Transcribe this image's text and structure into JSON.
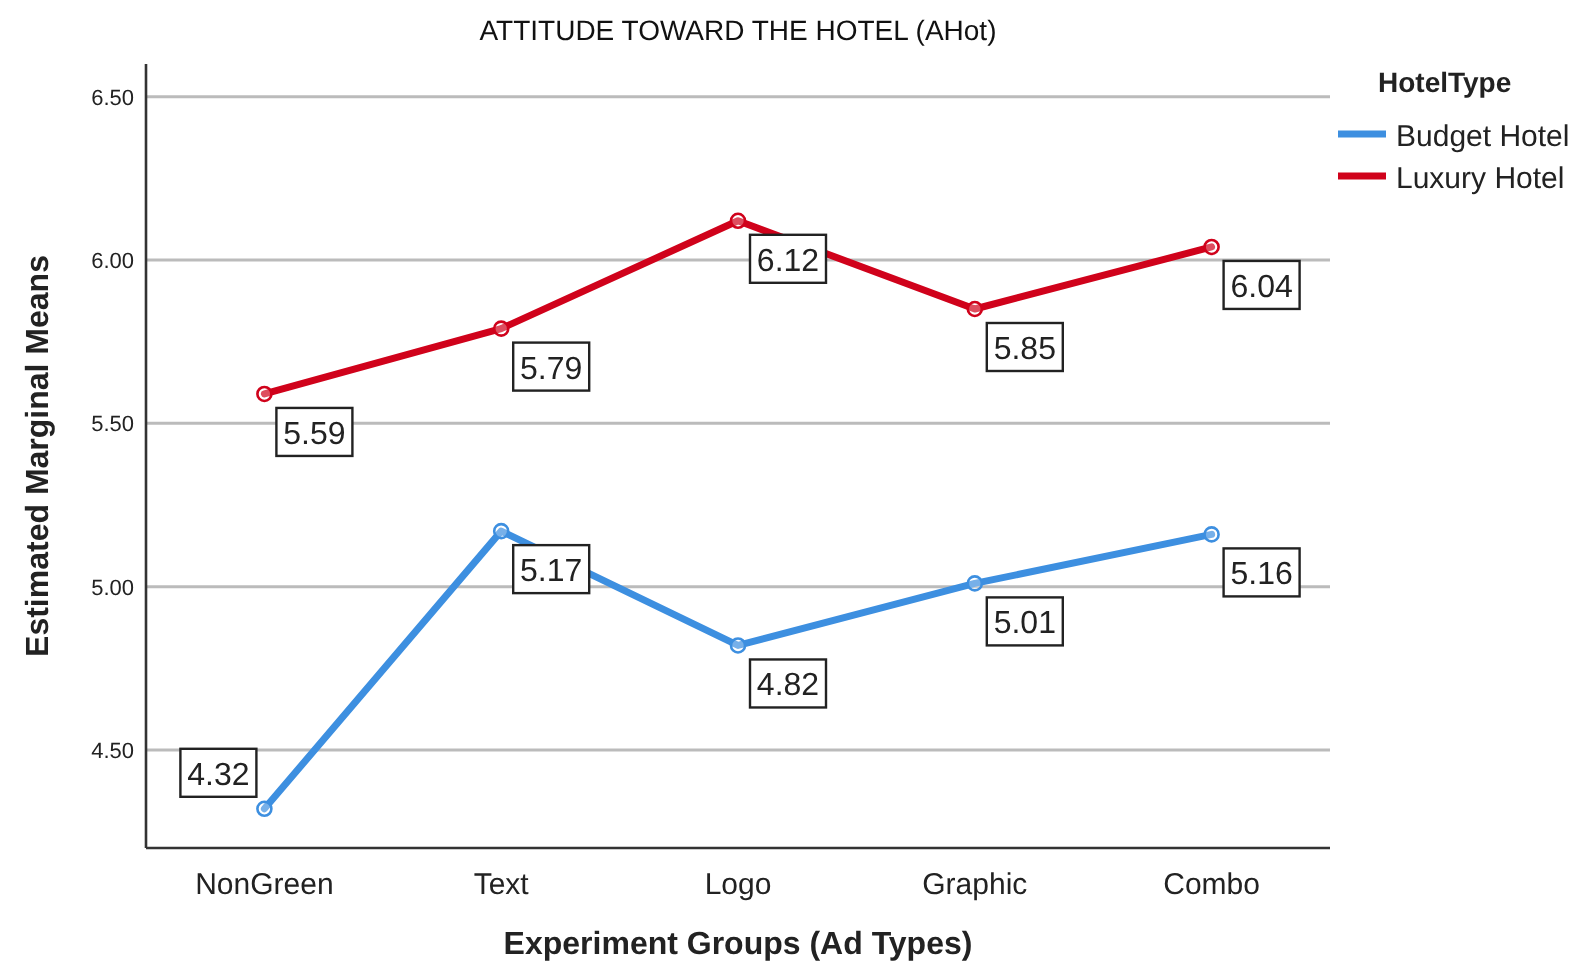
{
  "chart_data": {
    "type": "line",
    "title": "ATTITUDE TOWARD THE HOTEL (AHot)",
    "xlabel": "Experiment Groups (Ad Types)",
    "ylabel": "Estimated Marginal Means",
    "legend_title": "HotelType",
    "categories": [
      "NonGreen",
      "Text",
      "Logo",
      "Graphic",
      "Combo"
    ],
    "series": [
      {
        "name": "Budget Hotel",
        "color": "#3d8fe0",
        "values": [
          4.32,
          5.17,
          4.82,
          5.01,
          5.16
        ]
      },
      {
        "name": "Luxury Hotel",
        "color": "#d0021b",
        "values": [
          5.59,
          5.79,
          6.12,
          5.85,
          6.04
        ]
      }
    ],
    "ylim": [
      4.2,
      6.6
    ],
    "yticks": [
      {
        "value": 4.5,
        "label": "4.50"
      },
      {
        "value": 5,
        "label": "5.00"
      },
      {
        "value": 5.5,
        "label": "5.50"
      },
      {
        "value": 6,
        "label": "6.00"
      },
      {
        "value": 6.5,
        "label": "6.50"
      }
    ],
    "grid": "y",
    "legend": "top right",
    "marker": "circle",
    "line_style": "solid",
    "data_labels": true
  }
}
